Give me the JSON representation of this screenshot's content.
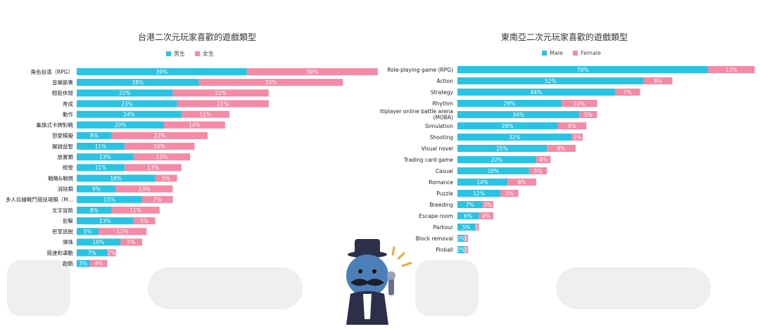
{
  "colors": {
    "male": "#29c4e3",
    "female": "#f48aa6"
  },
  "chart_data": [
    {
      "type": "bar",
      "orientation": "horizontal",
      "stacked": true,
      "title": "台港二次元玩家喜歡的遊戲類型",
      "legend": [
        "男生",
        "女生"
      ],
      "legend_position": "top",
      "categories": [
        "角色扮演（RPG）",
        "音樂節奏",
        "輕鬆休閒",
        "育成",
        "動作",
        "集換式卡牌對戰",
        "戀愛模擬",
        "解謎益智",
        "放置類",
        "經營",
        "戰略&戰棋",
        "消除類",
        "多人在線戰鬥競技場類（M...",
        "文字冒險",
        "射擊",
        "密室逃脫",
        "彈珠",
        "競速和運動",
        "跑酷"
      ],
      "series": [
        {
          "name": "男生",
          "values": [
            39,
            28,
            22,
            23,
            24,
            20,
            8,
            11,
            13,
            11,
            18,
            9,
            15,
            8,
            13,
            5,
            10,
            7,
            3
          ],
          "labels": [
            "39%",
            "28%",
            "22%",
            "23%",
            "24%",
            "20%",
            "8%",
            "11%",
            "13%",
            "11%",
            "18%",
            "9%",
            "15%",
            "8%",
            "13%",
            "5%",
            "10%",
            "7%",
            "3%"
          ]
        },
        {
          "name": "女生",
          "values": [
            30,
            33,
            22,
            21,
            11,
            14,
            22,
            16,
            13,
            13,
            5,
            13,
            7,
            11,
            5,
            11,
            5,
            2,
            4
          ],
          "labels": [
            "30%",
            "33%",
            "22%",
            "21%",
            "11%",
            "14%",
            "22%",
            "16%",
            "13%",
            "13%",
            "5%",
            "13%",
            "7%",
            "11%",
            "5%",
            "11%",
            "5%",
            "2%",
            "4%"
          ]
        }
      ],
      "grid": false
    },
    {
      "type": "bar",
      "orientation": "horizontal",
      "stacked": true,
      "title": "東南亞二次元玩家喜歡的遊戲類型",
      "legend": [
        "Male",
        "Female"
      ],
      "legend_position": "top",
      "categories": [
        "Role-playing game (RPG)",
        "Action",
        "Strategy",
        "Rhythm",
        "Multiplayer online battle arena\n(MOBA)",
        "Simulation",
        "Shooting",
        "Visual novel",
        "Trading card game",
        "Casual",
        "Romance",
        "Puzzle",
        "Breeding",
        "Escape room",
        "Parkour",
        "Block removal",
        "Pinball"
      ],
      "series": [
        {
          "name": "Male",
          "values": [
            70,
            52,
            44,
            29,
            34,
            28,
            32,
            25,
            22,
            20,
            14,
            12,
            7,
            6,
            5,
            2,
            2
          ],
          "labels": [
            "70%",
            "52%",
            "44%",
            "29%",
            "34%",
            "28%",
            "32%",
            "25%",
            "22%",
            "20%",
            "14%",
            "12%",
            "7%",
            "6%",
            "5%",
            "2%",
            "2%"
          ]
        },
        {
          "name": "Female",
          "values": [
            13,
            8,
            7,
            10,
            5,
            8,
            3,
            8,
            4,
            5,
            8,
            5,
            3,
            4,
            1,
            1,
            1
          ],
          "labels": [
            "13%",
            "8%",
            "7%",
            "10%",
            "5%",
            "8%",
            "3%",
            "8%",
            "4%",
            "5%",
            "8%",
            "5%",
            "3%",
            "4%",
            "1%",
            "1%",
            "1%"
          ]
        }
      ],
      "grid": false
    }
  ]
}
